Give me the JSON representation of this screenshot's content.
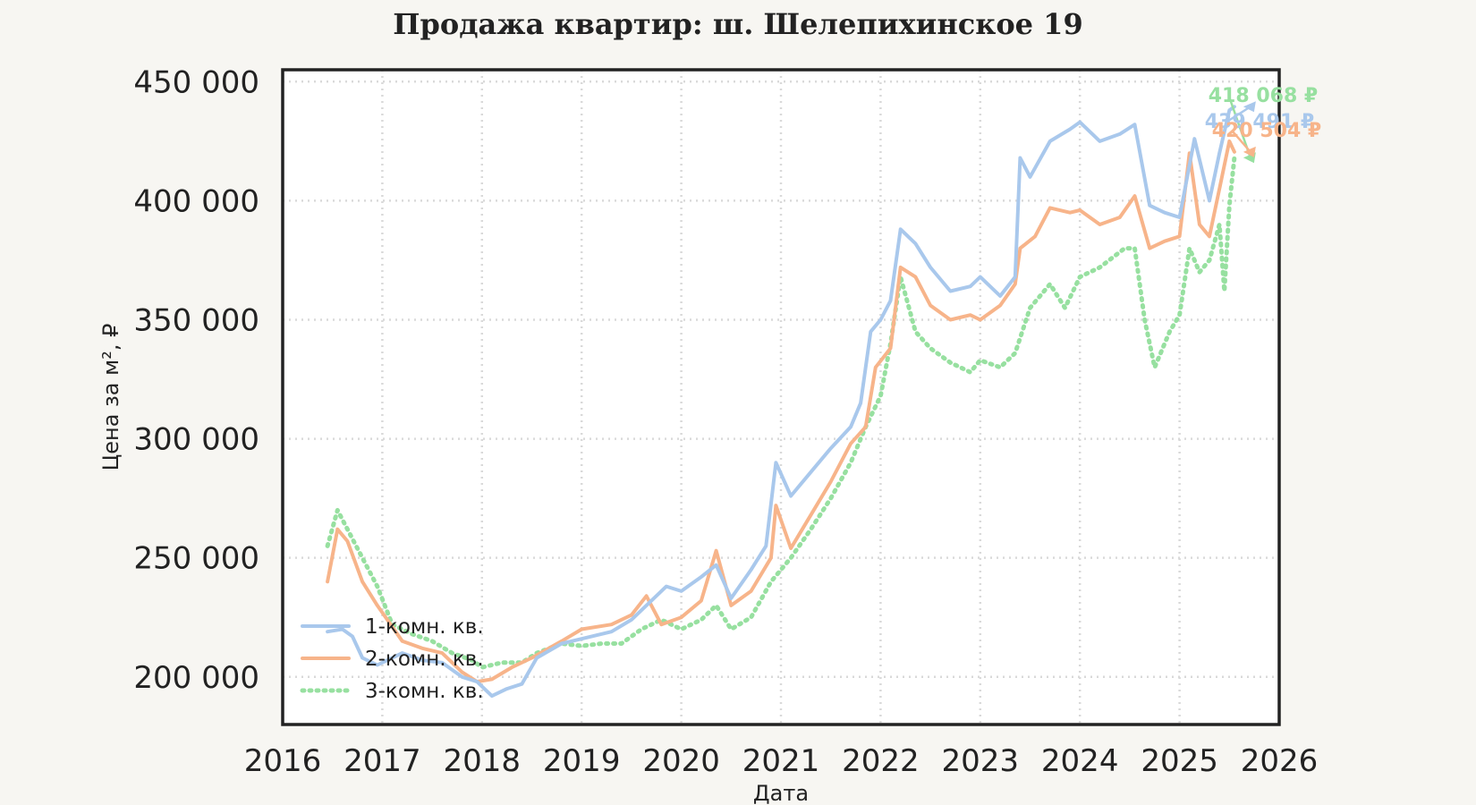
{
  "chart_data": {
    "type": "line",
    "title": "Продажа квартир: ш. Шелепихинское 19",
    "xlabel": "Дата",
    "ylabel": "Цена за м², ₽",
    "xlim": [
      2016,
      2026
    ],
    "ylim": [
      180000,
      455000
    ],
    "x_ticks": [
      "2016",
      "2017",
      "2018",
      "2019",
      "2020",
      "2021",
      "2022",
      "2023",
      "2024",
      "2025",
      "2026"
    ],
    "y_ticks": [
      {
        "value": 200000,
        "label": "200 000"
      },
      {
        "value": 250000,
        "label": "250 000"
      },
      {
        "value": 300000,
        "label": "300 000"
      },
      {
        "value": 350000,
        "label": "350 000"
      },
      {
        "value": 400000,
        "label": "400 000"
      },
      {
        "value": 450000,
        "label": "450 000"
      }
    ],
    "grid": true,
    "legend_position": "bottom-left",
    "series": [
      {
        "name": "1-комн. кв.",
        "color": "#a9c8ec",
        "style": "solid",
        "x": [
          2016.45,
          2016.6,
          2016.7,
          2016.8,
          2016.95,
          2017.2,
          2017.4,
          2017.6,
          2017.8,
          2017.95,
          2018.1,
          2018.25,
          2018.4,
          2018.55,
          2018.8,
          2019.0,
          2019.3,
          2019.5,
          2019.7,
          2019.85,
          2020.0,
          2020.2,
          2020.35,
          2020.5,
          2020.7,
          2020.85,
          2020.95,
          2021.1,
          2021.3,
          2021.5,
          2021.7,
          2021.8,
          2021.9,
          2022.0,
          2022.1,
          2022.2,
          2022.35,
          2022.5,
          2022.7,
          2022.9,
          2023.0,
          2023.2,
          2023.35,
          2023.4,
          2023.5,
          2023.7,
          2023.9,
          2024.0,
          2024.2,
          2024.4,
          2024.55,
          2024.7,
          2024.85,
          2025.0,
          2025.15,
          2025.3,
          2025.4,
          2025.5,
          2025.55
        ],
        "values": [
          219000,
          220000,
          217000,
          208000,
          205000,
          210000,
          207000,
          206000,
          200000,
          198000,
          192000,
          195000,
          197000,
          208000,
          214000,
          216000,
          219000,
          224000,
          232000,
          238000,
          236000,
          242000,
          247000,
          233000,
          245000,
          255000,
          290000,
          276000,
          286000,
          296000,
          305000,
          315000,
          345000,
          350000,
          358000,
          388000,
          382000,
          372000,
          362000,
          364000,
          368000,
          360000,
          368000,
          418000,
          410000,
          425000,
          430000,
          433000,
          425000,
          428000,
          432000,
          398000,
          395000,
          393000,
          426000,
          400000,
          420000,
          438000,
          439491
        ]
      },
      {
        "name": "2-комн. кв.",
        "color": "#f7b48a",
        "style": "solid",
        "x": [
          2016.45,
          2016.55,
          2016.65,
          2016.8,
          2016.95,
          2017.2,
          2017.4,
          2017.6,
          2017.8,
          2017.95,
          2018.1,
          2018.3,
          2018.5,
          2018.8,
          2019.0,
          2019.3,
          2019.5,
          2019.65,
          2019.8,
          2020.0,
          2020.2,
          2020.35,
          2020.5,
          2020.7,
          2020.9,
          2020.95,
          2021.1,
          2021.3,
          2021.5,
          2021.7,
          2021.85,
          2021.95,
          2022.1,
          2022.2,
          2022.35,
          2022.5,
          2022.7,
          2022.9,
          2023.0,
          2023.2,
          2023.35,
          2023.4,
          2023.55,
          2023.7,
          2023.9,
          2024.0,
          2024.2,
          2024.4,
          2024.55,
          2024.7,
          2024.85,
          2025.0,
          2025.1,
          2025.2,
          2025.3,
          2025.4,
          2025.5,
          2025.55
        ],
        "values": [
          240000,
          262000,
          257000,
          240000,
          230000,
          215000,
          212000,
          210000,
          202000,
          198000,
          199000,
          204000,
          208000,
          215000,
          220000,
          222000,
          226000,
          234000,
          222000,
          225000,
          232000,
          253000,
          230000,
          236000,
          250000,
          272000,
          254000,
          268000,
          282000,
          298000,
          305000,
          330000,
          338000,
          372000,
          368000,
          356000,
          350000,
          352000,
          350000,
          356000,
          365000,
          380000,
          385000,
          397000,
          395000,
          396000,
          390000,
          393000,
          402000,
          380000,
          383000,
          385000,
          420000,
          390000,
          385000,
          405000,
          425000,
          420504
        ]
      },
      {
        "name": "3-комн. кв.",
        "color": "#97e0a0",
        "style": "dotted",
        "x": [
          2016.45,
          2016.55,
          2016.65,
          2016.8,
          2016.95,
          2017.1,
          2017.3,
          2017.5,
          2017.7,
          2017.9,
          2018.0,
          2018.2,
          2018.4,
          2018.55,
          2018.8,
          2019.0,
          2019.2,
          2019.4,
          2019.6,
          2019.8,
          2020.0,
          2020.2,
          2020.35,
          2020.5,
          2020.7,
          2020.9,
          2021.1,
          2021.3,
          2021.5,
          2021.7,
          2021.85,
          2022.0,
          2022.1,
          2022.2,
          2022.35,
          2022.5,
          2022.7,
          2022.9,
          2023.0,
          2023.2,
          2023.35,
          2023.5,
          2023.7,
          2023.85,
          2024.0,
          2024.2,
          2024.45,
          2024.55,
          2024.65,
          2024.75,
          2024.9,
          2025.0,
          2025.1,
          2025.2,
          2025.3,
          2025.4,
          2025.45,
          2025.5,
          2025.55
        ],
        "values": [
          255000,
          270000,
          262000,
          250000,
          238000,
          222000,
          218000,
          215000,
          210000,
          207000,
          204000,
          206000,
          206000,
          210000,
          214000,
          213000,
          214000,
          214000,
          220000,
          224000,
          220000,
          224000,
          230000,
          220000,
          225000,
          240000,
          250000,
          262000,
          275000,
          290000,
          305000,
          318000,
          340000,
          368000,
          345000,
          338000,
          332000,
          328000,
          333000,
          330000,
          336000,
          355000,
          365000,
          355000,
          368000,
          372000,
          380000,
          380000,
          350000,
          330000,
          345000,
          352000,
          380000,
          370000,
          375000,
          390000,
          362000,
          398000,
          418068
        ]
      }
    ],
    "annotations": [
      {
        "text": "418 068 ₽",
        "series": "3-комн. кв."
      },
      {
        "text": "439 491 ₽",
        "series": "1-комн. кв."
      },
      {
        "text": "420 504 ₽",
        "series": "2-комн. кв."
      }
    ]
  }
}
